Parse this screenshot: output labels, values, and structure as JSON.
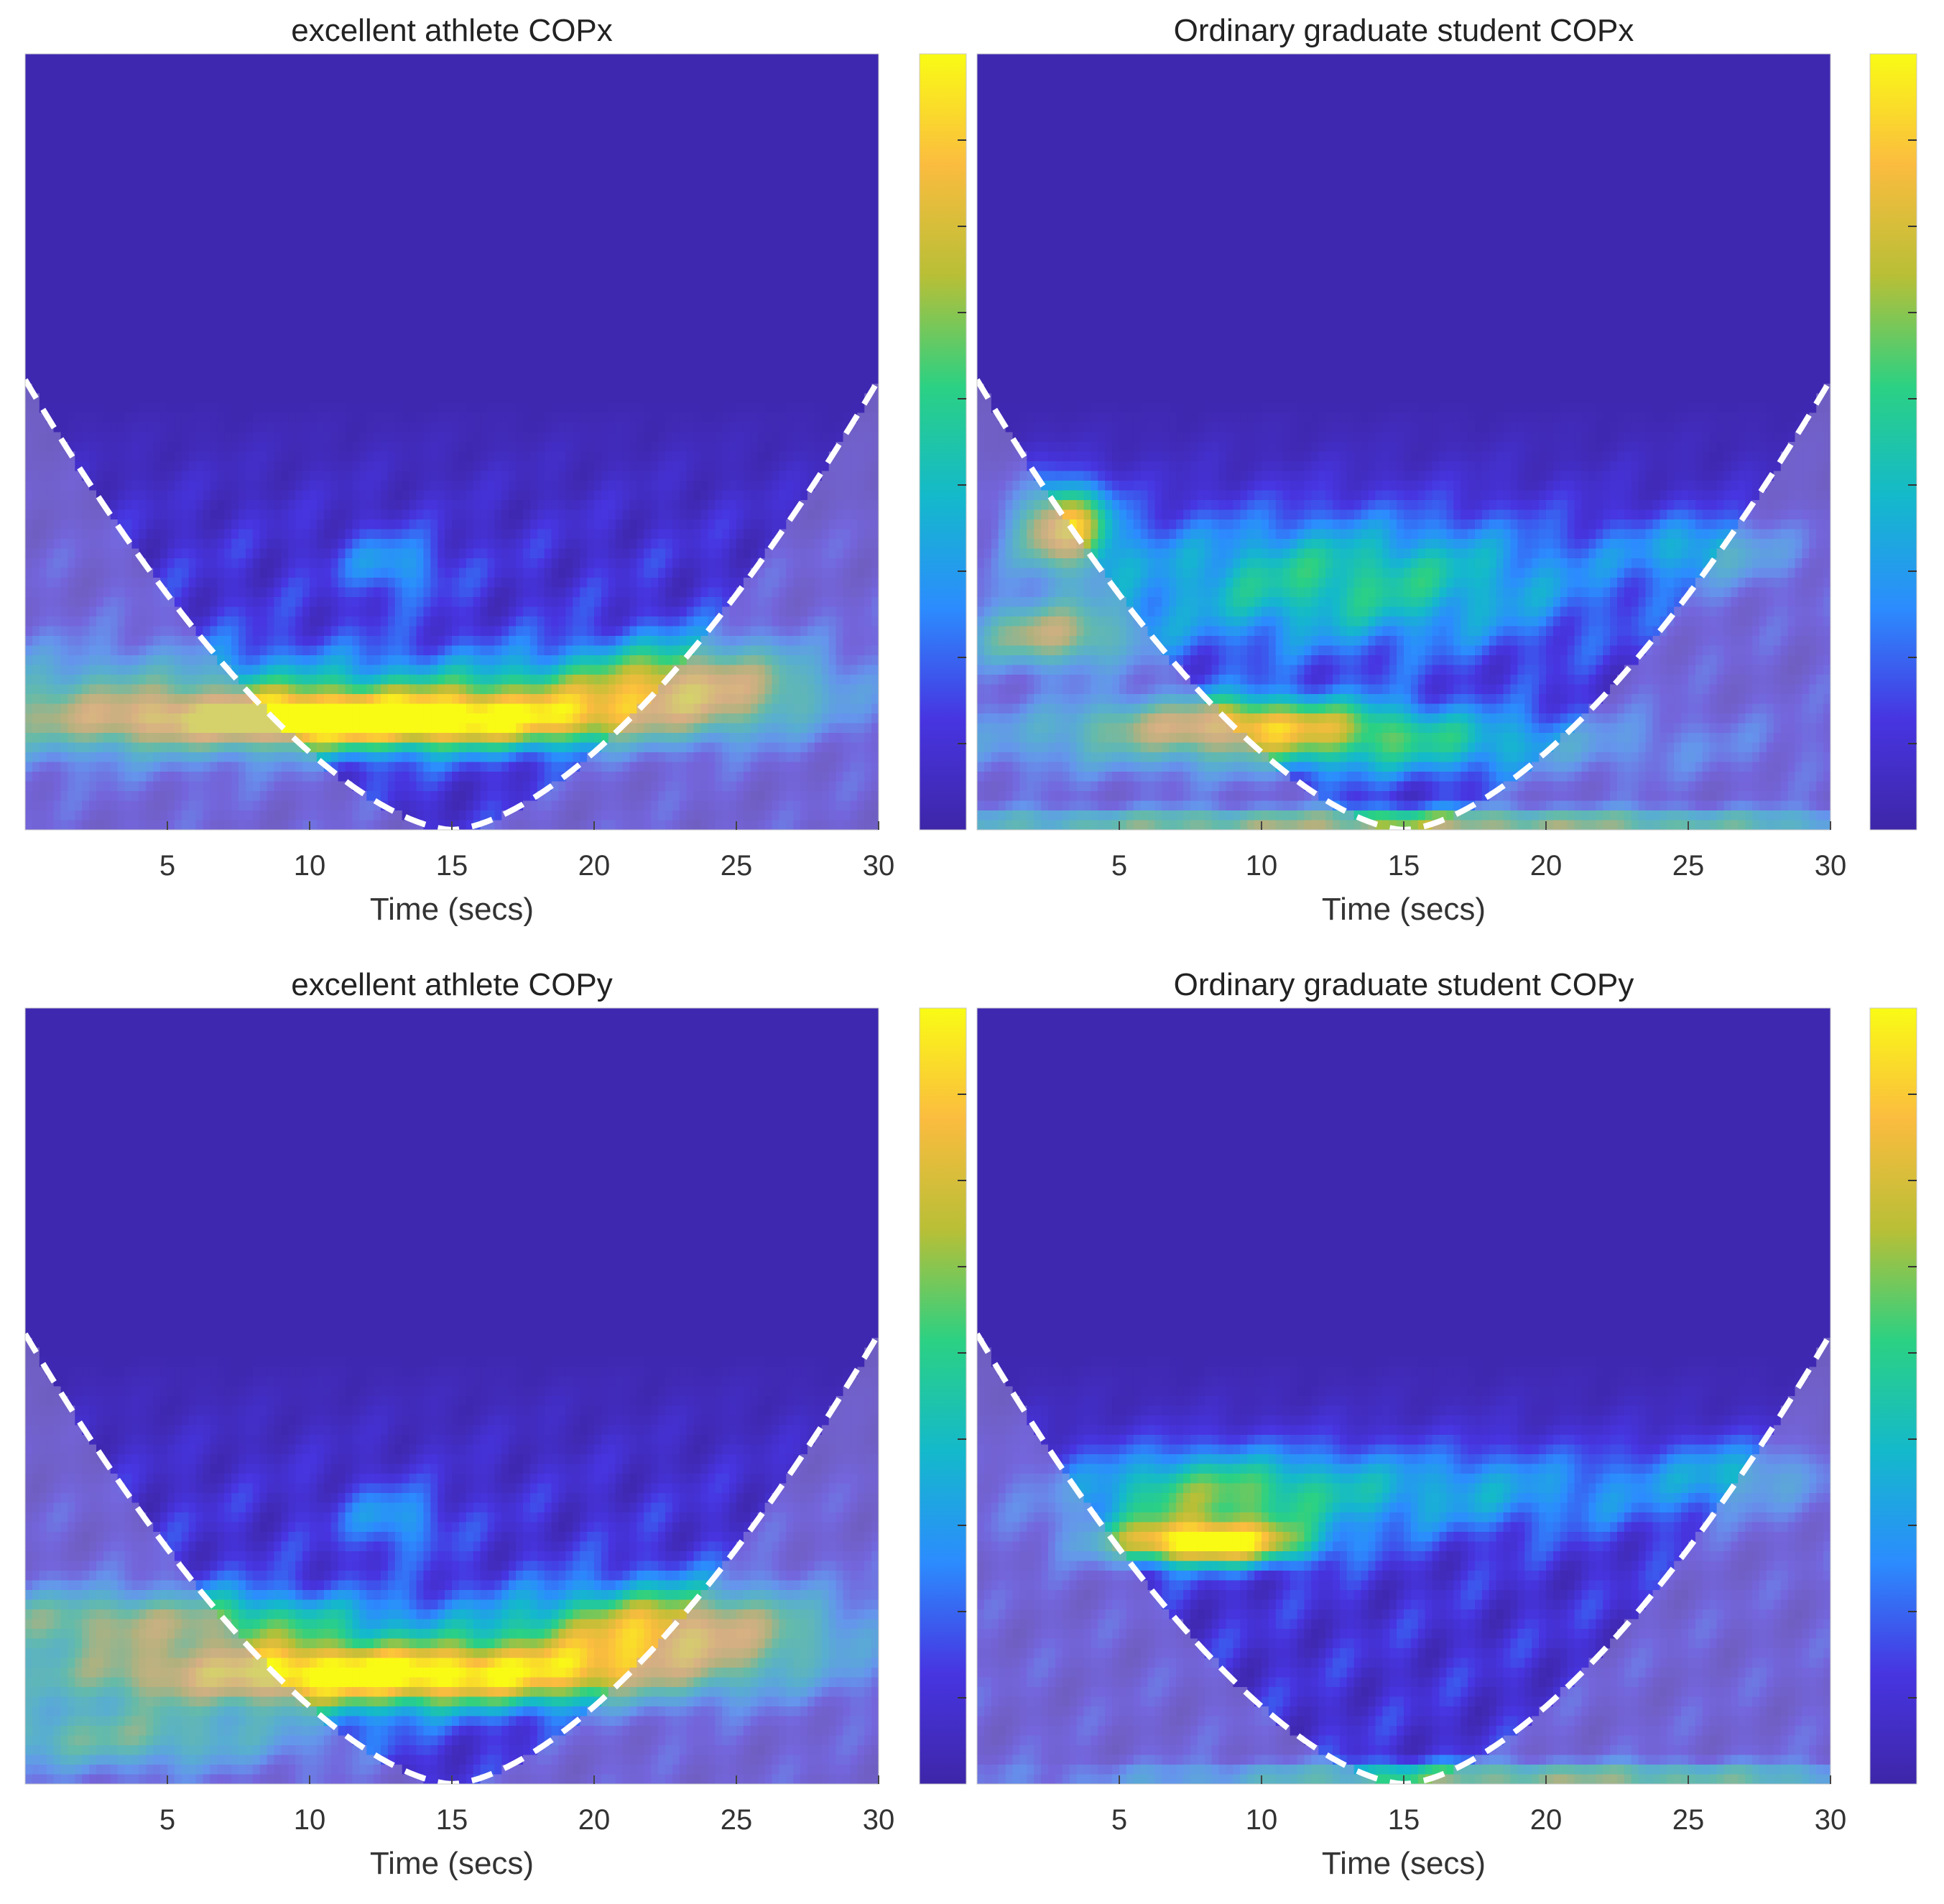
{
  "figure": {
    "colormap": [
      "#3e26a8",
      "#4735e1",
      "#2c8cfe",
      "#14b9cb",
      "#2bd183",
      "#b8bf36",
      "#fbbc3f",
      "#f9fb15"
    ],
    "cone_of_influence_color": "#ffffff"
  },
  "chart_data": [
    {
      "type": "heatmap",
      "title": "excellent athlete COPx",
      "xlabel": "Time (secs)",
      "ylabel": "",
      "xlim": [
        0,
        30
      ],
      "xticks": [
        5,
        10,
        15,
        20,
        25,
        30
      ],
      "colorbar": true,
      "cone_of_influence": "dashed",
      "background_level": 0.02,
      "hotspots": [
        {
          "t": 12,
          "band": 0.86,
          "amp": 0.78,
          "spread_t": 6.5,
          "spread_band": 0.025
        },
        {
          "t": 3,
          "band": 0.84,
          "amp": 0.45,
          "spread_t": 6,
          "spread_band": 0.05
        },
        {
          "t": 24,
          "band": 0.81,
          "amp": 0.55,
          "spread_t": 3,
          "spread_band": 0.04
        },
        {
          "t": 18,
          "band": 0.83,
          "amp": 0.38,
          "spread_t": 6,
          "spread_band": 0.04
        },
        {
          "t": 13,
          "band": 0.66,
          "amp": 0.25,
          "spread_t": 1.2,
          "spread_band": 0.03
        }
      ]
    },
    {
      "type": "heatmap",
      "title": "Ordinary graduate student COPx",
      "xlabel": "Time (secs)",
      "ylabel": "",
      "xlim": [
        0,
        30
      ],
      "xticks": [
        5,
        10,
        15,
        20,
        25,
        30
      ],
      "colorbar": true,
      "cone_of_influence": "dashed",
      "background_level": 0.02,
      "hotspots": [
        {
          "t": 3,
          "band": 0.61,
          "amp": 0.78,
          "spread_t": 1.2,
          "spread_band": 0.04
        },
        {
          "t": 2.5,
          "band": 0.75,
          "amp": 0.6,
          "spread_t": 2,
          "spread_band": 0.03
        },
        {
          "t": 9,
          "band": 0.86,
          "amp": 0.55,
          "spread_t": 4,
          "spread_band": 0.025
        },
        {
          "t": 13,
          "band": 0.68,
          "amp": 0.42,
          "spread_t": 6,
          "spread_band": 0.06
        },
        {
          "t": 12,
          "band": 0.89,
          "amp": 0.38,
          "spread_t": 9,
          "spread_band": 0.03
        },
        {
          "t": 26,
          "band": 0.64,
          "amp": 0.3,
          "spread_t": 2,
          "spread_band": 0.03
        },
        {
          "t": 15,
          "band": 0.99,
          "amp": 0.6,
          "spread_t": 14,
          "spread_band": 0.012
        }
      ]
    },
    {
      "type": "heatmap",
      "title": "excellent athlete COPy",
      "xlabel": "Time (secs)",
      "ylabel": "",
      "xlim": [
        0,
        30
      ],
      "xticks": [
        5,
        10,
        15,
        20,
        25,
        30
      ],
      "colorbar": true,
      "cone_of_influence": "dashed",
      "background_level": 0.02,
      "hotspots": [
        {
          "t": 12,
          "band": 0.86,
          "amp": 0.95,
          "spread_t": 8,
          "spread_band": 0.03
        },
        {
          "t": 23,
          "band": 0.8,
          "amp": 0.75,
          "spread_t": 4,
          "spread_band": 0.04
        },
        {
          "t": 4,
          "band": 0.79,
          "amp": 0.55,
          "spread_t": 6,
          "spread_band": 0.03
        },
        {
          "t": 3,
          "band": 0.94,
          "amp": 0.45,
          "spread_t": 5,
          "spread_band": 0.03
        },
        {
          "t": 13,
          "band": 0.66,
          "amp": 0.25,
          "spread_t": 1.2,
          "spread_band": 0.03
        }
      ]
    },
    {
      "type": "heatmap",
      "title": "Ordinary graduate student COPy",
      "xlabel": "Time (secs)",
      "ylabel": "",
      "xlim": [
        0,
        30
      ],
      "xticks": [
        5,
        10,
        15,
        20,
        25,
        30
      ],
      "colorbar": true,
      "cone_of_influence": "dashed",
      "background_level": 0.02,
      "hotspots": [
        {
          "t": 8,
          "band": 0.69,
          "amp": 0.85,
          "spread_t": 2.5,
          "spread_band": 0.02
        },
        {
          "t": 8,
          "band": 0.63,
          "amp": 0.35,
          "spread_t": 3,
          "spread_band": 0.04
        },
        {
          "t": 15,
          "band": 0.62,
          "amp": 0.28,
          "spread_t": 8,
          "spread_band": 0.04
        },
        {
          "t": 27,
          "band": 0.6,
          "amp": 0.25,
          "spread_t": 2,
          "spread_band": 0.03
        },
        {
          "t": 20,
          "band": 0.99,
          "amp": 0.55,
          "spread_t": 10,
          "spread_band": 0.012
        }
      ]
    }
  ]
}
